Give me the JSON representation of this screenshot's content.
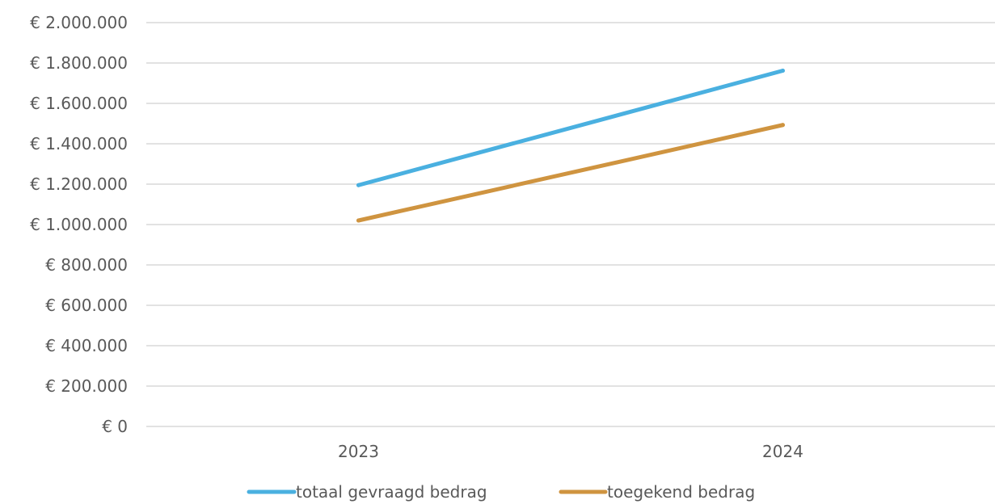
{
  "chart_data": {
    "type": "line",
    "title": "",
    "xlabel": "",
    "ylabel": "",
    "categories": [
      "2023",
      "2024"
    ],
    "series": [
      {
        "name": "totaal gevraagd bedrag",
        "color": "#4AB0E0",
        "values": [
          1195000,
          1762000
        ]
      },
      {
        "name": "toegekend bedrag",
        "color": "#CF9440",
        "values": [
          1020000,
          1493000
        ]
      }
    ],
    "ylim": [
      0,
      2000000
    ],
    "y_ticks": [
      0,
      200000,
      400000,
      600000,
      800000,
      1000000,
      1200000,
      1400000,
      1600000,
      1800000,
      2000000
    ],
    "y_tick_labels": [
      "€ 0",
      "€ 200.000",
      "€ 400.000",
      "€ 600.000",
      "€ 800.000",
      "€ 1.000.000",
      "€ 1.200.000",
      "€ 1.400.000",
      "€ 1.600.000",
      "€ 1.800.000",
      "€ 2.000.000"
    ],
    "grid": true,
    "gridline_color": "#D9D9D9",
    "legend_position": "bottom"
  }
}
